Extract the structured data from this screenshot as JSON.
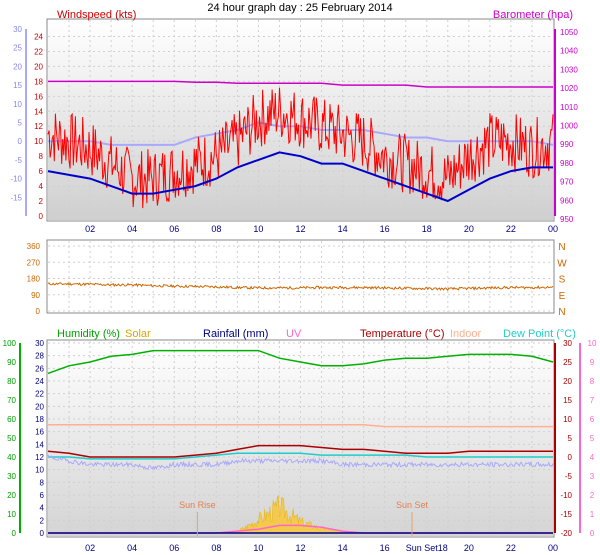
{
  "title": "24 hour graph day : 25 February 2014",
  "panels": {
    "wind": {
      "label_left": "Windspeed (kts)",
      "label_right": "Barometer (hpa)",
      "wind_ticks": [
        "24",
        "22",
        "20",
        "18",
        "16",
        "14",
        "12",
        "10",
        "8",
        "6",
        "4",
        "2",
        "0"
      ],
      "temp_ticks": [
        "30",
        "25",
        "20",
        "15",
        "10",
        "5",
        "0",
        "-5",
        "-10",
        "-15"
      ],
      "baro_ticks": [
        "1050",
        "1040",
        "1030",
        "1020",
        "1010",
        "1000",
        "990",
        "980",
        "970",
        "960",
        "950"
      ]
    },
    "direction": {
      "ticks": [
        "360",
        "270",
        "180",
        "90",
        "0"
      ],
      "compass": [
        "N",
        "W",
        "S",
        "E",
        "N"
      ]
    },
    "bottom": {
      "legend": {
        "humidity": "Humidity (%)",
        "solar": "Solar",
        "rainfall": "Rainfall (mm)",
        "uv": "UV",
        "temperature": "Temperature (°C)",
        "indoor": "Indoor",
        "dewpoint": "Dew Point (°C)"
      },
      "hum_ticks": [
        "100",
        "90",
        "80",
        "70",
        "60",
        "50",
        "40",
        "30",
        "20",
        "10",
        "0"
      ],
      "rain_ticks": [
        "30",
        "28",
        "26",
        "24",
        "22",
        "20",
        "18",
        "16",
        "14",
        "12",
        "10",
        "8",
        "6",
        "4",
        "2",
        "0"
      ],
      "temp_ticks": [
        "30",
        "25",
        "20",
        "15",
        "10",
        "5",
        "0",
        "-5",
        "-10",
        "-15",
        "-20"
      ],
      "uv_ticks": [
        "10",
        "9",
        "8",
        "7",
        "6",
        "5",
        "4",
        "3",
        "2",
        "1",
        "0"
      ],
      "sunrise": "Sun Rise",
      "sunset": "Sun Set"
    },
    "x_ticks": [
      "02",
      "04",
      "06",
      "08",
      "10",
      "12",
      "14",
      "16",
      "18",
      "20",
      "22",
      "00"
    ],
    "x_ticks_bottom": [
      "02",
      "04",
      "06",
      "08",
      "10",
      "12",
      "14",
      "16",
      "Sun Set18",
      "20",
      "22",
      "00"
    ]
  },
  "colors": {
    "windspeed": "#ff0000",
    "windavg": "#0000cc",
    "barometer": "#cc00cc",
    "temperature_top": "#a8a8ff",
    "direction": "#cc6600",
    "humidity": "#00b000",
    "solar": "#e8b400",
    "rainfall": "#000080",
    "uv": "#ff66cc",
    "temperature": "#aa0000",
    "indoor": "#ffb090",
    "dewpoint": "#22cccc"
  },
  "chart_data": [
    {
      "type": "line",
      "title": "24 hour graph day : 25 February 2014",
      "x_hours": [
        0,
        1,
        2,
        3,
        4,
        5,
        6,
        7,
        8,
        9,
        10,
        11,
        12,
        13,
        14,
        15,
        16,
        17,
        18,
        19,
        20,
        21,
        22,
        23,
        24
      ],
      "series": [
        {
          "name": "Windspeed (kts)",
          "axis": "left",
          "ylim": [
            0,
            25
          ],
          "values": [
            11,
            10,
            9,
            7,
            5,
            5,
            6,
            7,
            8,
            10,
            13,
            14,
            13,
            12,
            11,
            10,
            8,
            7,
            6,
            5,
            8,
            10,
            10,
            9,
            10
          ]
        },
        {
          "name": "Windspeed average",
          "axis": "left",
          "ylim": [
            0,
            25
          ],
          "values": [
            6,
            5.5,
            5,
            4,
            3,
            3,
            3.5,
            4,
            5,
            6.5,
            7.5,
            8.5,
            8,
            7,
            7,
            6,
            5,
            4,
            3,
            2,
            3.5,
            5,
            6,
            6.5,
            6.5
          ]
        },
        {
          "name": "Barometer (hpa)",
          "axis": "right",
          "ylim": [
            950,
            1050
          ],
          "values": [
            1022,
            1022,
            1022,
            1022,
            1022,
            1022,
            1022,
            1021.5,
            1021.5,
            1021,
            1021,
            1021,
            1021,
            1021,
            1020,
            1020,
            1020,
            1020,
            1019,
            1019,
            1019,
            1019,
            1019,
            1019,
            1019
          ]
        },
        {
          "name": "Temperature (°C)",
          "axis": "outer-left",
          "ylim": [
            -20,
            30
          ],
          "values": [
            0,
            0,
            0,
            -1,
            -1,
            -1,
            -1,
            1,
            2,
            3,
            5,
            4,
            4,
            3,
            3,
            3,
            2,
            1,
            1,
            0,
            0,
            0,
            0,
            0,
            -1
          ]
        }
      ]
    },
    {
      "type": "line",
      "ylim": [
        0,
        360
      ],
      "series": [
        {
          "name": "Wind direction",
          "values": [
            150,
            150,
            148,
            145,
            145,
            140,
            138,
            136,
            134,
            130,
            128,
            128,
            128,
            130,
            130,
            130,
            128,
            126,
            124,
            122,
            125,
            128,
            130,
            130,
            132
          ]
        }
      ]
    },
    {
      "type": "line",
      "series": [
        {
          "name": "Humidity (%)",
          "ylim": [
            0,
            100
          ],
          "values": [
            84,
            88,
            90,
            93,
            94,
            96,
            96,
            96,
            96,
            96,
            96,
            92,
            90,
            88,
            88,
            89,
            91,
            92,
            92,
            93,
            94,
            94,
            94,
            93,
            90
          ]
        },
        {
          "name": "Temperature (°C)",
          "ylim": [
            -20,
            30
          ],
          "values": [
            1.5,
            1,
            0,
            0,
            0,
            0,
            0,
            0.5,
            1,
            2,
            3,
            3,
            3,
            2.5,
            2,
            2,
            1.5,
            1,
            1,
            1,
            1.5,
            1.5,
            1.5,
            1.5,
            1.5
          ]
        },
        {
          "name": "Indoor",
          "ylim": [
            -20,
            30
          ],
          "values": [
            8.5,
            8.5,
            8.5,
            8.5,
            8.5,
            8.5,
            8.5,
            8.5,
            8.5,
            8.5,
            8.5,
            8.5,
            8.5,
            8.5,
            8.5,
            8.5,
            8,
            8,
            8,
            8,
            8,
            8,
            8,
            8,
            8
          ]
        },
        {
          "name": "Dew Point (°C)",
          "ylim": [
            -20,
            30
          ],
          "values": [
            0,
            0,
            -0.5,
            -0.5,
            -0.5,
            -0.5,
            -0.5,
            0,
            0.5,
            1,
            1,
            1,
            1,
            0.5,
            0.5,
            0.5,
            0.5,
            0.5,
            0,
            0,
            0,
            0,
            0,
            0,
            0
          ]
        },
        {
          "name": "Temperature outer",
          "ylim": [
            -20,
            30
          ],
          "values": [
            0,
            -1,
            -2,
            -2,
            -2,
            -3,
            -2,
            -2,
            -2,
            -1,
            -1,
            -1,
            -1,
            -1,
            -2,
            -2,
            -2,
            -2,
            -2,
            -2,
            -2,
            -2,
            -2,
            -2,
            -2
          ]
        },
        {
          "name": "Solar",
          "ylim": [
            0,
            1000
          ],
          "values": [
            0,
            0,
            0,
            0,
            0,
            0,
            0,
            0,
            0,
            8,
            70,
            140,
            60,
            25,
            5,
            0,
            0,
            0,
            0,
            0,
            0,
            0,
            0,
            0,
            0
          ]
        },
        {
          "name": "UV",
          "ylim": [
            0,
            10
          ],
          "values": [
            0,
            0,
            0,
            0,
            0,
            0,
            0,
            0,
            0,
            0.1,
            0.2,
            0.4,
            0.4,
            0.3,
            0.1,
            0,
            0,
            0,
            0,
            0,
            0,
            0,
            0,
            0,
            0
          ]
        },
        {
          "name": "Rainfall (mm)",
          "ylim": [
            0,
            30
          ],
          "values": [
            0,
            0,
            0,
            0,
            0,
            0,
            0,
            0,
            0,
            0,
            0,
            0,
            0,
            0,
            0,
            0,
            0,
            0,
            0,
            0,
            0,
            0,
            0,
            0,
            0
          ]
        }
      ],
      "sunrise_hour": 7.1,
      "sunset_hour": 17.3
    }
  ]
}
